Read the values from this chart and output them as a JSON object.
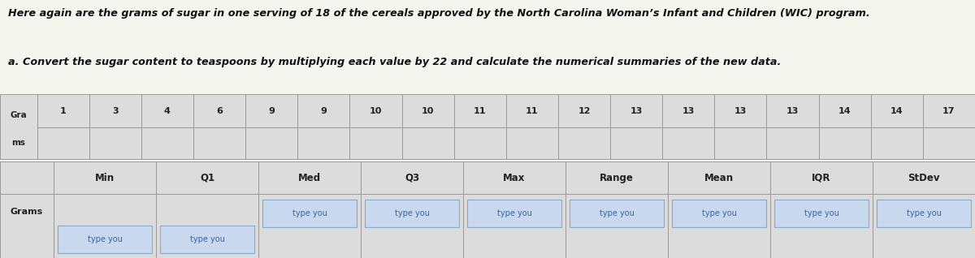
{
  "title_line1": "Here again are the grams of sugar in one serving of 18 of the cereals approved by the North Carolina Woman’s Infant and Children (WIC) program.",
  "title_line2": "a. Convert the sugar content to teaspoons by multiplying each value by 22 and calculate the numerical summaries of the new data.",
  "grams_values": [
    "1",
    "3",
    "4",
    "6",
    "9",
    "9",
    "10",
    "10",
    "11",
    "11",
    "12",
    "13",
    "13",
    "13",
    "13",
    "14",
    "14",
    "17"
  ],
  "summary_headers": [
    "Min",
    "Q1",
    "Med",
    "Q3",
    "Max",
    "Range",
    "Mean",
    "IQR",
    "StDev"
  ],
  "summary_row_label": "Grams",
  "input_placeholder": "type you",
  "fig_bg": "#f5f5f0",
  "table_cell_bg": "#dcdcdc",
  "input_bg": "#c8d8ee",
  "input_border": "#8aaacc",
  "title_color": "#111111",
  "text_color": "#222222",
  "grid_color": "#999999"
}
